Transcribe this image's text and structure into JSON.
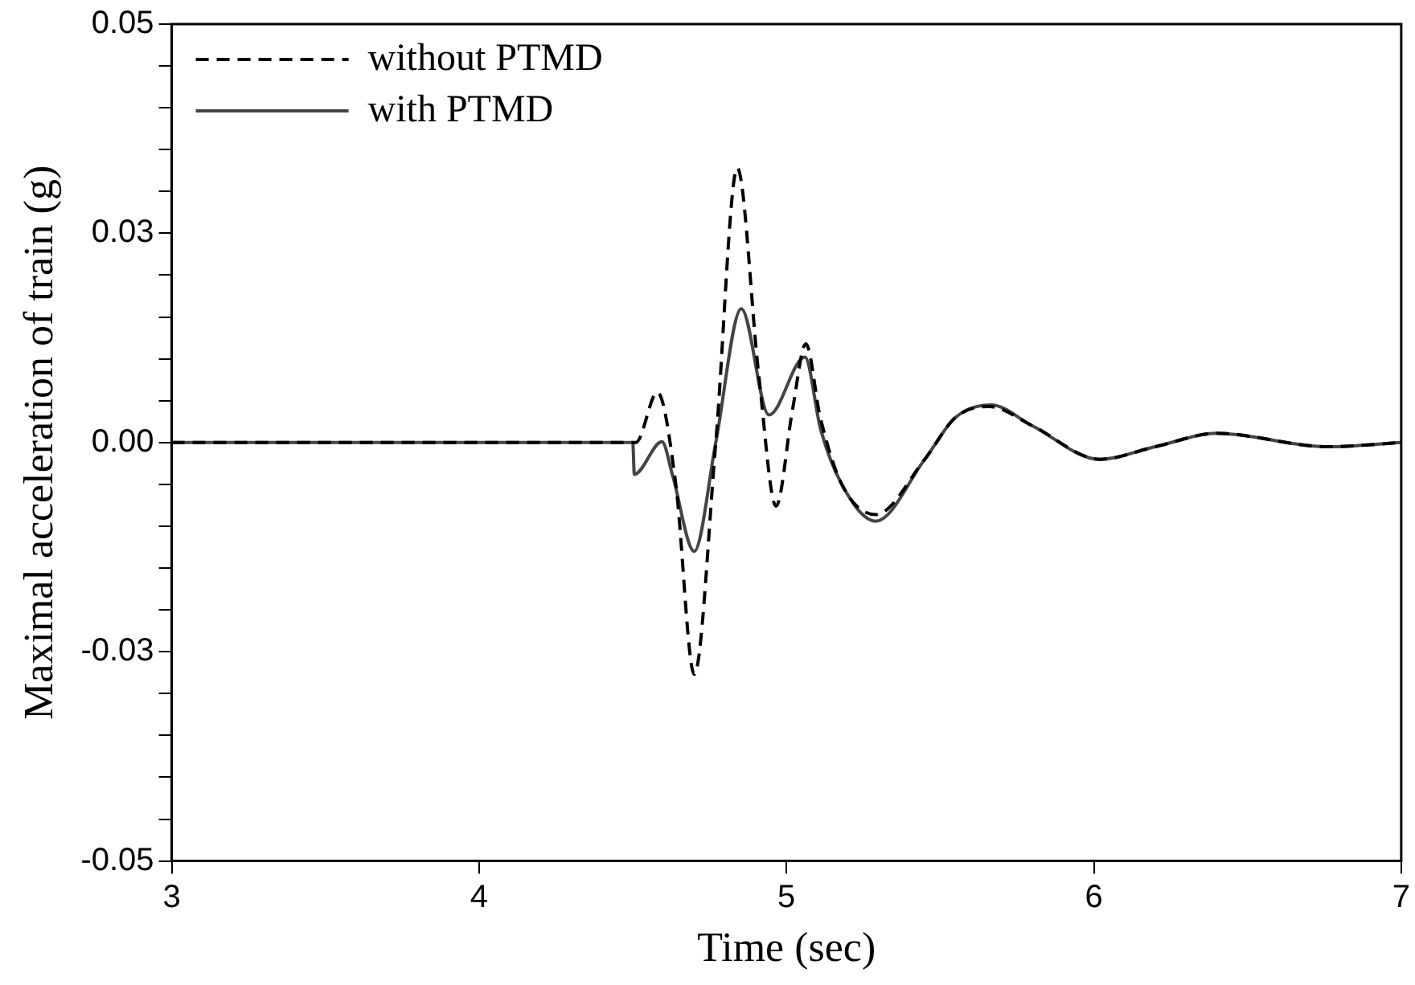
{
  "chart_data": {
    "type": "line",
    "xlabel": "Time (sec)",
    "ylabel": "Maximal acceleration of train (g)",
    "xlim": [
      3,
      7
    ],
    "xticks": [
      3,
      4,
      5,
      6,
      7
    ],
    "ylim": [
      -0.05,
      0.05
    ],
    "yticks": [
      -0.05,
      {
        "value": -0.045,
        "label": null
      },
      {
        "value": -0.04,
        "label": null
      },
      {
        "value": -0.035,
        "label": null
      },
      {
        "value": -0.03,
        "label": null
      },
      {
        "value": -0.025,
        "label": "-0.03"
      },
      {
        "value": -0.02,
        "label": null
      },
      {
        "value": -0.015,
        "label": null
      },
      {
        "value": -0.01,
        "label": null
      },
      {
        "value": -0.005,
        "label": null
      },
      {
        "value": 0,
        "label": "0.00"
      },
      {
        "value": 0.005,
        "label": null
      },
      {
        "value": 0.01,
        "label": null
      },
      {
        "value": 0.015,
        "label": null
      },
      {
        "value": 0.02,
        "label": null
      },
      {
        "value": 0.025,
        "label": "0.03"
      },
      {
        "value": 0.03,
        "label": null
      },
      {
        "value": 0.035,
        "label": null
      },
      {
        "value": 0.04,
        "label": null
      },
      {
        "value": 0.045,
        "label": null
      },
      0.05
    ],
    "grid": false,
    "legend": "top left",
    "marker": "none",
    "series": [
      {
        "name": "without PTMD",
        "color": "#000000",
        "line_style": "dashed",
        "x": [
          3,
          4.5,
          4.51,
          4.58,
          4.64,
          4.7,
          4.77,
          4.84,
          4.91,
          4.966,
          5.02,
          5.063,
          5.11,
          5.18,
          5.29,
          5.45,
          5.55,
          5.66,
          5.8,
          6.02,
          6.2,
          6.4,
          6.76,
          7
        ],
        "values": [
          0,
          0,
          0,
          0.006,
          -0.005,
          -0.0277,
          0,
          0.0328,
          0.008,
          -0.0076,
          0.004,
          0.0118,
          0.003,
          -0.005,
          -0.0086,
          -0.002,
          0.003,
          0.0043,
          0.002,
          -0.002,
          -0.0005,
          0.0011,
          -0.0005,
          0
        ]
      },
      {
        "name": "with PTMD",
        "color": "#444444",
        "line_style": "solid",
        "x": [
          3,
          4.5,
          4.505,
          4.595,
          4.63,
          4.7,
          4.77,
          4.853,
          4.943,
          5.06,
          5.111,
          5.18,
          5.29,
          5.45,
          5.55,
          5.665,
          5.8,
          6.018,
          6.2,
          6.4,
          6.76,
          7
        ],
        "values": [
          0,
          0,
          -0.0038,
          0.0001,
          -0.004,
          -0.013,
          0,
          0.016,
          0.0033,
          0.0102,
          0.0016,
          -0.005,
          -0.0094,
          -0.002,
          0.003,
          0.0045,
          0.002,
          -0.002,
          -0.0005,
          0.0011,
          -0.0005,
          0
        ]
      }
    ]
  }
}
